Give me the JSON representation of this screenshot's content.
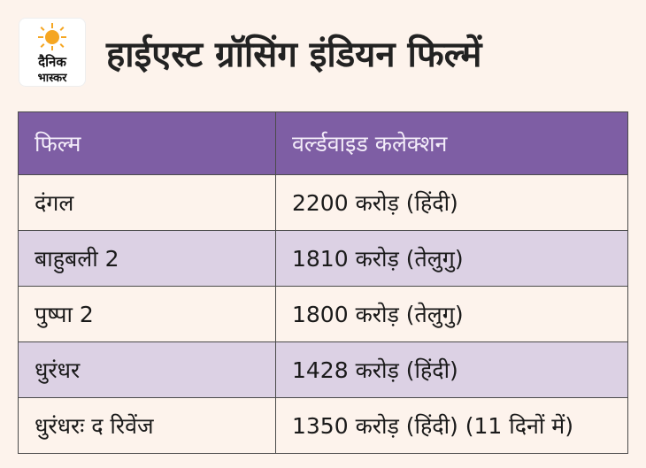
{
  "logo": {
    "line1": "दैनिक",
    "line2": "भास्कर"
  },
  "title": "हाईएस्ट ग्रॉसिंग इंडियन फिल्में",
  "table": {
    "headers": [
      "फिल्म",
      "वर्ल्डवाइड कलेक्शन"
    ],
    "rows": [
      {
        "film": "दंगल",
        "collection": "2200 करोड़ (हिंदी)"
      },
      {
        "film": "बाहुबली 2",
        "collection": "1810 करोड़ (तेलुगु)"
      },
      {
        "film": "पुष्पा 2",
        "collection": "1800 करोड़ (तेलुगु)"
      },
      {
        "film": "धुरंधर",
        "collection": "1428 करोड़ (हिंदी)"
      },
      {
        "film": "धुरंधरः द रिवेंज",
        "collection": "1350 करोड़ (हिंदी) (11 दिनों में)"
      }
    ]
  },
  "colors": {
    "header": "#7e5ea4",
    "stripe": "#dcd1e4",
    "background": "#fdf3ec",
    "sun": "#f5a623"
  }
}
